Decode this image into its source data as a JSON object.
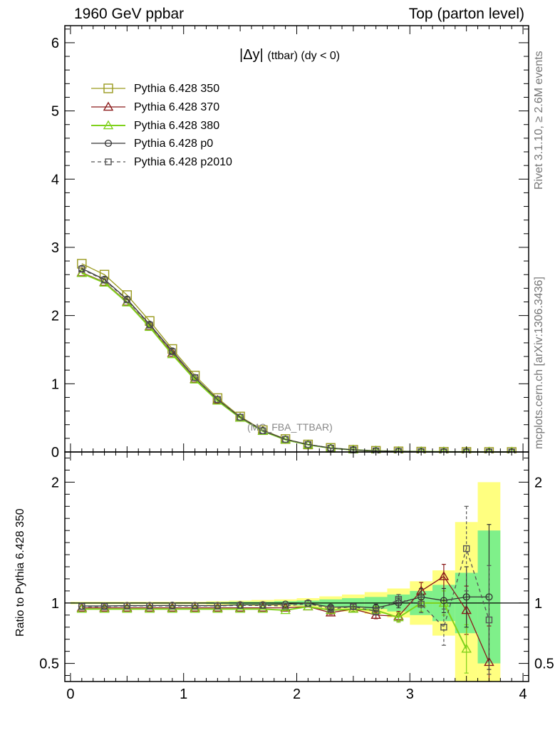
{
  "header": {
    "left": "1960 GeV ppbar",
    "right": "Top (parton level)"
  },
  "side_labels": {
    "rivet": "Rivet 3.1.10, ≥ 2.6M events",
    "mcplots": "mcplots.cern.ch [arXiv:1306.3436]"
  },
  "chart_data": [
    {
      "type": "line",
      "title_main": "|Δy|",
      "title_suffix": "(ttbar) (dy < 0)",
      "watermark": "(MC_FBA_TTBAR)",
      "xlim": [
        -0.05,
        4.05
      ],
      "ylim": [
        0,
        6.25
      ],
      "y_ticks": [
        0,
        1,
        2,
        3,
        4,
        5,
        6
      ],
      "x": [
        0.1,
        0.3,
        0.5,
        0.7,
        0.9,
        1.1,
        1.3,
        1.5,
        1.7,
        1.9,
        2.1,
        2.3,
        2.5,
        2.7,
        2.9,
        3.1,
        3.3,
        3.5,
        3.7,
        3.9
      ],
      "series": [
        {
          "name": "Pythia 6.428 350",
          "color": "#9a9a1e",
          "marker": "square",
          "dash": false,
          "values": [
            2.76,
            2.6,
            2.3,
            1.92,
            1.51,
            1.12,
            0.79,
            0.52,
            0.32,
            0.19,
            0.11,
            0.06,
            0.032,
            0.017,
            0.009,
            0.005,
            0.0025,
            0.0012,
            0.0006,
            0.0002
          ]
        },
        {
          "name": "Pythia 6.428 370",
          "color": "#8b1a1a",
          "marker": "triangle",
          "dash": false,
          "values": [
            2.63,
            2.49,
            2.2,
            1.84,
            1.45,
            1.07,
            0.76,
            0.5,
            0.31,
            0.18,
            0.105,
            0.055,
            0.03,
            0.015,
            0.008,
            0.0055,
            0.003,
            0.0011,
            0.0003,
            0.0
          ]
        },
        {
          "name": "Pythia 6.428 380",
          "color": "#7fd11b",
          "marker": "triangle",
          "dash": false,
          "values": [
            2.62,
            2.48,
            2.19,
            1.83,
            1.43,
            1.06,
            0.75,
            0.5,
            0.305,
            0.18,
            0.105,
            0.056,
            0.03,
            0.016,
            0.008,
            0.005,
            0.0025,
            0.0007,
            0.0,
            0.0
          ]
        },
        {
          "name": "Pythia 6.428 p0",
          "color": "#333333",
          "marker": "circle",
          "dash": false,
          "values": [
            2.69,
            2.53,
            2.24,
            1.87,
            1.48,
            1.09,
            0.77,
            0.51,
            0.315,
            0.185,
            0.11,
            0.058,
            0.031,
            0.016,
            0.009,
            0.005,
            0.0026,
            0.0013,
            0.0006,
            0.0
          ]
        },
        {
          "name": "Pythia 6.428 p2010",
          "color": "#555555",
          "marker": "square",
          "dash": true,
          "values": [
            2.68,
            2.52,
            2.23,
            1.86,
            1.47,
            1.09,
            0.77,
            0.51,
            0.31,
            0.185,
            0.11,
            0.057,
            0.031,
            0.016,
            0.0092,
            0.005,
            0.002,
            0.0017,
            0.0005,
            0.0
          ]
        }
      ]
    },
    {
      "type": "line",
      "ylabel": "Ratio to Pythia 6.428 350",
      "xlim": [
        -0.05,
        4.05
      ],
      "ylim": [
        0.35,
        2.25
      ],
      "y_ticks": [
        0.5,
        1,
        2
      ],
      "x_ticks": [
        0,
        1,
        2,
        3,
        4
      ],
      "reference_band": {
        "x_edges": [
          0.0,
          0.2,
          0.4,
          0.6,
          0.8,
          1.0,
          1.2,
          1.4,
          1.6,
          1.8,
          2.0,
          2.2,
          2.4,
          2.6,
          2.8,
          3.0,
          3.2,
          3.4,
          3.6,
          3.8
        ],
        "inner_color": "#7ff08a",
        "outer_color": "#ffff80",
        "inner_low": [
          0.995,
          0.995,
          0.995,
          0.995,
          0.995,
          0.995,
          0.993,
          0.99,
          0.99,
          0.985,
          0.98,
          0.97,
          0.96,
          0.95,
          0.93,
          0.9,
          0.85,
          0.75,
          0.5
        ],
        "inner_high": [
          1.005,
          1.005,
          1.005,
          1.005,
          1.005,
          1.005,
          1.007,
          1.01,
          1.01,
          1.015,
          1.02,
          1.03,
          1.04,
          1.05,
          1.07,
          1.1,
          1.15,
          1.25,
          1.6
        ],
        "outer_low": [
          0.99,
          0.99,
          0.99,
          0.99,
          0.99,
          0.99,
          0.985,
          0.98,
          0.975,
          0.97,
          0.96,
          0.945,
          0.93,
          0.91,
          0.88,
          0.82,
          0.73,
          0.33,
          0.33
        ],
        "outer_high": [
          1.01,
          1.01,
          1.01,
          1.01,
          1.01,
          1.01,
          1.015,
          1.02,
          1.025,
          1.03,
          1.04,
          1.055,
          1.07,
          1.09,
          1.12,
          1.18,
          1.27,
          1.67,
          2.0
        ]
      },
      "series": [
        {
          "name": "Pythia 6.428 370",
          "x": [
            0.1,
            0.3,
            0.5,
            0.7,
            0.9,
            1.1,
            1.3,
            1.5,
            1.7,
            1.9,
            2.1,
            2.3,
            2.5,
            2.7,
            2.9,
            3.1,
            3.3,
            3.5,
            3.7
          ],
          "values": [
            0.96,
            0.96,
            0.96,
            0.96,
            0.96,
            0.96,
            0.96,
            0.96,
            0.96,
            0.96,
            0.97,
            0.92,
            0.95,
            0.9,
            0.89,
            1.1,
            1.22,
            0.94,
            0.51
          ],
          "err": [
            0.005,
            0.005,
            0.005,
            0.005,
            0.005,
            0.005,
            0.005,
            0.006,
            0.007,
            0.008,
            0.01,
            0.015,
            0.02,
            0.03,
            0.04,
            0.07,
            0.1,
            0.2,
            0.3
          ]
        },
        {
          "name": "Pythia 6.428 380",
          "x": [
            0.1,
            0.3,
            0.5,
            0.7,
            0.9,
            1.1,
            1.3,
            1.5,
            1.7,
            1.9,
            2.1,
            2.3,
            2.5,
            2.7,
            2.9,
            3.1,
            3.3,
            3.5
          ],
          "values": [
            0.95,
            0.95,
            0.95,
            0.95,
            0.95,
            0.95,
            0.95,
            0.95,
            0.95,
            0.94,
            0.97,
            0.94,
            0.95,
            0.94,
            0.88,
            1.0,
            1.0,
            0.62
          ],
          "err": [
            0.005,
            0.005,
            0.005,
            0.005,
            0.005,
            0.005,
            0.005,
            0.006,
            0.007,
            0.008,
            0.01,
            0.015,
            0.02,
            0.03,
            0.04,
            0.07,
            0.1,
            0.2
          ]
        },
        {
          "name": "Pythia 6.428 p0",
          "x": [
            0.1,
            0.3,
            0.5,
            0.7,
            0.9,
            1.1,
            1.3,
            1.5,
            1.7,
            1.9,
            2.1,
            2.3,
            2.5,
            2.7,
            2.9,
            3.1,
            3.3,
            3.5,
            3.7
          ],
          "values": [
            0.975,
            0.975,
            0.978,
            0.978,
            0.98,
            0.978,
            0.978,
            0.985,
            0.985,
            0.99,
            1.0,
            0.965,
            0.97,
            0.96,
            1.0,
            1.05,
            1.02,
            1.05,
            1.05
          ],
          "err": [
            0.005,
            0.005,
            0.005,
            0.005,
            0.005,
            0.005,
            0.005,
            0.006,
            0.007,
            0.008,
            0.01,
            0.015,
            0.02,
            0.03,
            0.04,
            0.07,
            0.1,
            0.25,
            0.6
          ]
        },
        {
          "name": "Pythia 6.428 p2010",
          "x": [
            0.1,
            0.3,
            0.5,
            0.7,
            0.9,
            1.1,
            1.3,
            1.5,
            1.7,
            1.9,
            2.1,
            2.3,
            2.5,
            2.7,
            2.9,
            3.1,
            3.3,
            3.5,
            3.7
          ],
          "values": [
            0.97,
            0.97,
            0.975,
            0.975,
            0.975,
            0.975,
            0.975,
            0.98,
            0.98,
            0.975,
            0.995,
            0.95,
            0.97,
            0.93,
            1.03,
            0.99,
            0.8,
            1.45,
            0.86
          ],
          "err": [
            0.005,
            0.005,
            0.005,
            0.005,
            0.005,
            0.005,
            0.005,
            0.006,
            0.007,
            0.008,
            0.01,
            0.015,
            0.02,
            0.03,
            0.04,
            0.07,
            0.15,
            0.35,
            0.45
          ]
        }
      ]
    }
  ]
}
